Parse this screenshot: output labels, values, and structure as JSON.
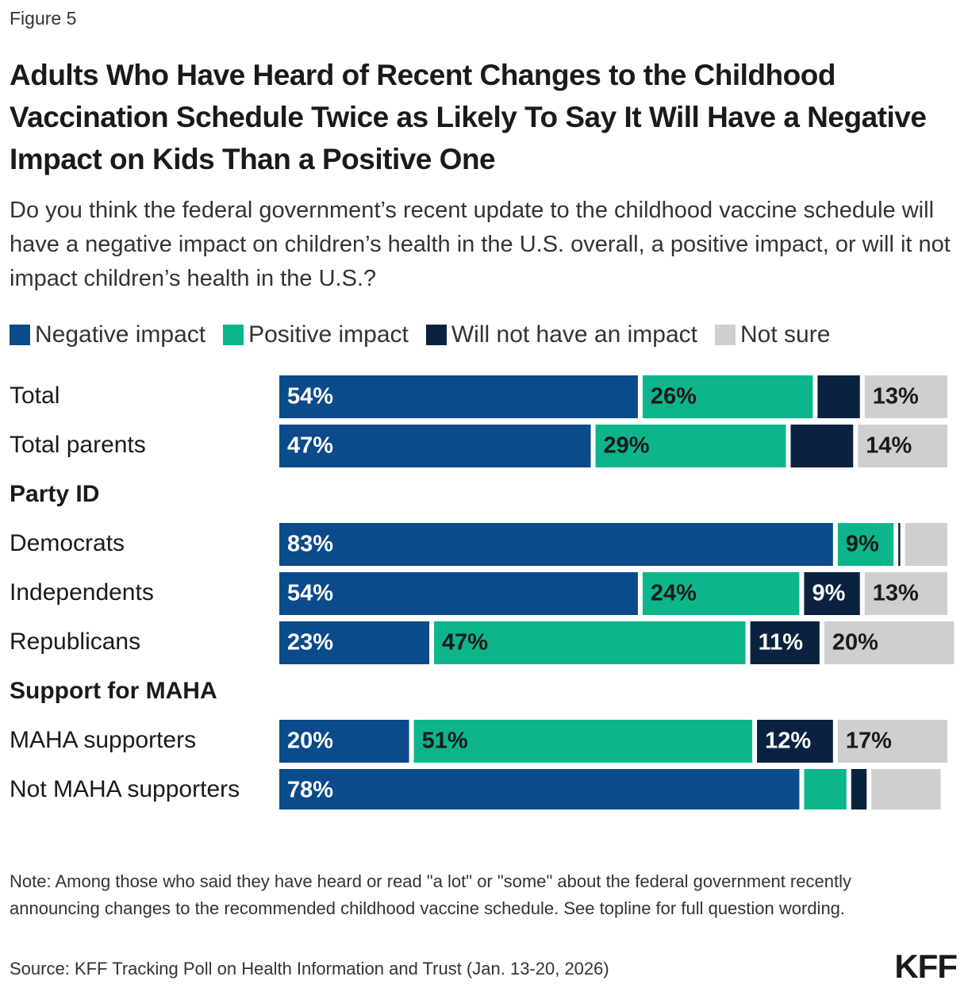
{
  "figure_label": "Figure 5",
  "chart_data": {
    "type": "stacked-bar-horizontal",
    "title": "Adults Who Have Heard of Recent Changes to the Childhood Vaccination Schedule Twice as Likely To Say It Will Have a Negative Impact on Kids Than a Positive One",
    "subtitle": "Do you think the federal government’s recent update to the childhood vaccine schedule will have a negative impact on children’s health in the U.S. overall, a positive impact, or will it not impact children’s health in the U.S.?",
    "categories": [
      "Total",
      "Total parents",
      "Party ID",
      "Democrats",
      "Independents",
      "Republicans",
      "Support for MAHA",
      "MAHA supporters",
      "Not MAHA supporters"
    ],
    "xlim": [
      0,
      100
    ],
    "series": [
      {
        "name": "Negative impact",
        "color": "#0b4a8b",
        "text_color": "#ffffff",
        "values": [
          54,
          47,
          null,
          83,
          54,
          23,
          null,
          20,
          78
        ],
        "value_labels": [
          "54%",
          "47%",
          null,
          "83%",
          "54%",
          "23%",
          null,
          "20%",
          "78%"
        ]
      },
      {
        "name": "Positive impact",
        "color": "#0db58c",
        "text_color": "#1a1a1a",
        "values": [
          26,
          29,
          null,
          9,
          24,
          47,
          null,
          51,
          7
        ],
        "value_labels": [
          "26%",
          "29%",
          null,
          "9%",
          "24%",
          "47%",
          null,
          "51%",
          null
        ]
      },
      {
        "name": "Will not have an impact",
        "color": "#0a2240",
        "text_color": "#ffffff",
        "values": [
          7,
          10,
          null,
          1,
          9,
          11,
          null,
          12,
          3
        ],
        "value_labels": [
          null,
          null,
          null,
          null,
          "9%",
          "11%",
          null,
          "12%",
          null
        ]
      },
      {
        "name": "Not sure",
        "color": "#cfcfcf",
        "text_color": "#1a1a1a",
        "values": [
          13,
          14,
          null,
          7,
          13,
          20,
          null,
          17,
          11
        ],
        "value_labels": [
          "13%",
          "14%",
          null,
          null,
          "13%",
          "20%",
          null,
          "17%",
          null
        ]
      }
    ]
  },
  "note": "Note: Among those who said they have heard or read \"a lot\" or \"some\" about the federal government recently announcing changes to the recommended childhood vaccine schedule. See topline for full question wording.",
  "source": "Source: KFF Tracking Poll on Health Information and Trust (Jan. 13-20, 2026)",
  "logo": "KFF"
}
